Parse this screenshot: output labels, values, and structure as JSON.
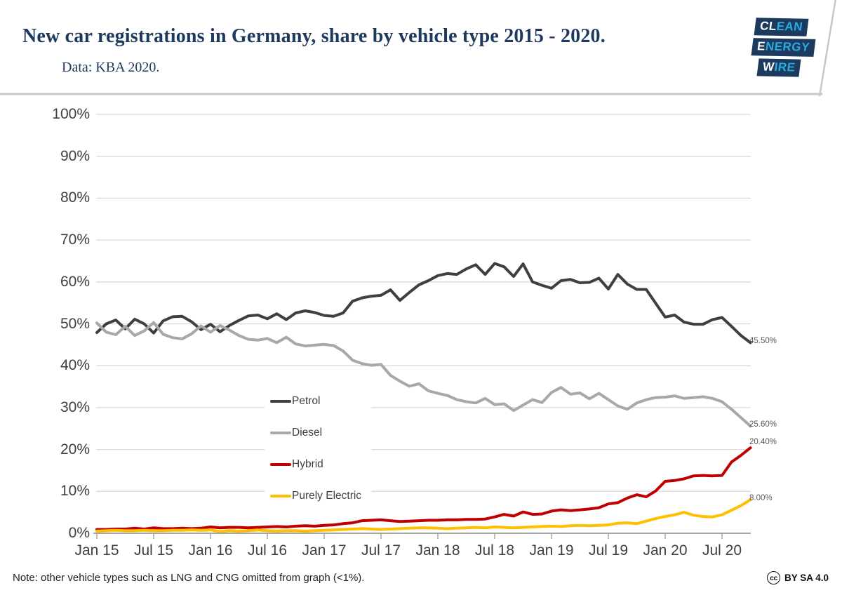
{
  "header": {
    "title": "New car registrations in Germany, share by vehicle type 2015 - 2020.",
    "subtitle": "Data: KBA 2020.",
    "logo_lines": [
      {
        "white": "CL",
        "blue": "EAN"
      },
      {
        "white": "E",
        "blue": "NERGY"
      },
      {
        "white": "W",
        "blue": "IRE"
      }
    ]
  },
  "footer": {
    "note": "Note: other vehicle types such as LNG and CNG omitted from graph (<1%).",
    "license_icon": "cc",
    "license_text": "BY SA 4.0"
  },
  "colors": {
    "title_navy": "#1d3a5e",
    "logo_navy": "#1b3a5e",
    "logo_blue": "#29abe2",
    "gridline": "#d9d9d9",
    "axis": "#a6a6a6",
    "axis_text": "#3f3f3f",
    "header_rule": "#c7c7c7"
  },
  "chart_data": {
    "type": "line",
    "x_unit": "month",
    "x_start": "Jan 2015",
    "x_end": "Oct 2020",
    "x_tick_labels": [
      "Jan 15",
      "Jul 15",
      "Jan 16",
      "Jul 16",
      "Jan 17",
      "Jul 17",
      "Jan 18",
      "Jul 18",
      "Jan 19",
      "Jul 19",
      "Jan 20",
      "Jul 20"
    ],
    "y_tick_labels": [
      "0%",
      "10%",
      "20%",
      "30%",
      "40%",
      "50%",
      "60%",
      "70%",
      "80%",
      "90%",
      "100%"
    ],
    "ylim": [
      0,
      100
    ],
    "grid": "horizontal",
    "legend_position": "inside-lower-left",
    "series": [
      {
        "name": "Petrol",
        "color": "#3f3f3f",
        "end_label": "45.50%",
        "values": [
          47.9,
          50.0,
          50.9,
          48.8,
          51.1,
          50.0,
          47.8,
          50.7,
          51.7,
          51.8,
          50.5,
          48.6,
          49.9,
          48.1,
          49.6,
          50.8,
          51.9,
          52.1,
          51.2,
          52.4,
          51.0,
          52.6,
          53.1,
          52.7,
          52.0,
          51.8,
          52.6,
          55.4,
          56.2,
          56.6,
          56.8,
          58.1,
          55.6,
          57.5,
          59.3,
          60.3,
          61.5,
          62.0,
          61.8,
          63.1,
          64.1,
          61.8,
          64.4,
          63.6,
          61.3,
          64.3,
          60.0,
          59.2,
          58.5,
          60.3,
          60.6,
          59.8,
          59.9,
          60.9,
          58.3,
          61.8,
          59.5,
          58.2,
          58.2,
          54.9,
          51.6,
          52.1,
          50.4,
          49.9,
          49.9,
          51.0,
          51.5,
          49.4,
          47.2,
          45.5
        ]
      },
      {
        "name": "Diesel",
        "color": "#a8a8a8",
        "end_label": "25.60%",
        "values": [
          50.2,
          48.0,
          47.4,
          49.4,
          47.2,
          48.3,
          50.3,
          47.5,
          46.7,
          46.4,
          47.6,
          49.5,
          48.0,
          49.6,
          48.5,
          47.2,
          46.3,
          46.1,
          46.5,
          45.5,
          46.8,
          45.2,
          44.7,
          44.9,
          45.1,
          44.8,
          43.5,
          41.3,
          40.5,
          40.1,
          40.3,
          37.7,
          36.3,
          35.1,
          35.7,
          34.0,
          33.4,
          32.9,
          31.9,
          31.4,
          31.1,
          32.2,
          30.7,
          30.9,
          29.3,
          30.6,
          31.9,
          31.2,
          33.6,
          34.8,
          33.2,
          33.5,
          32.1,
          33.4,
          31.9,
          30.4,
          29.6,
          31.1,
          31.9,
          32.4,
          32.5,
          32.8,
          32.2,
          32.4,
          32.6,
          32.2,
          31.4,
          29.6,
          27.6,
          25.6
        ]
      },
      {
        "name": "Hybrid",
        "color": "#c00000",
        "end_label": "20.40%",
        "values": [
          0.9,
          0.9,
          1.0,
          1.0,
          1.2,
          1.0,
          1.3,
          1.1,
          1.1,
          1.2,
          1.1,
          1.2,
          1.5,
          1.3,
          1.4,
          1.4,
          1.3,
          1.4,
          1.5,
          1.6,
          1.5,
          1.7,
          1.8,
          1.7,
          1.9,
          2.0,
          2.3,
          2.5,
          3.0,
          3.1,
          3.2,
          3.0,
          2.8,
          2.9,
          3.0,
          3.1,
          3.1,
          3.2,
          3.2,
          3.3,
          3.3,
          3.4,
          3.9,
          4.5,
          4.1,
          5.1,
          4.5,
          4.6,
          5.3,
          5.6,
          5.4,
          5.6,
          5.8,
          6.1,
          7.0,
          7.3,
          8.4,
          9.2,
          8.7,
          10.1,
          12.4,
          12.6,
          13.0,
          13.7,
          13.8,
          13.7,
          13.8,
          17.0,
          18.6,
          20.4
        ]
      },
      {
        "name": "Purely Electric",
        "color": "#ffc000",
        "end_label": "8.00%",
        "values": [
          0.5,
          0.6,
          0.7,
          0.6,
          0.6,
          0.7,
          0.6,
          0.6,
          0.7,
          0.7,
          0.8,
          0.7,
          0.8,
          0.4,
          0.6,
          0.5,
          0.6,
          0.8,
          0.6,
          0.5,
          0.6,
          0.6,
          0.5,
          0.6,
          0.7,
          0.8,
          0.9,
          1.0,
          1.1,
          1.0,
          0.9,
          1.0,
          1.1,
          1.2,
          1.3,
          1.3,
          1.2,
          1.1,
          1.2,
          1.3,
          1.4,
          1.3,
          1.5,
          1.4,
          1.3,
          1.4,
          1.5,
          1.6,
          1.7,
          1.6,
          1.8,
          1.9,
          1.8,
          1.9,
          2.0,
          2.4,
          2.5,
          2.3,
          2.9,
          3.5,
          4.0,
          4.4,
          5.0,
          4.3,
          4.0,
          3.9,
          4.4,
          5.5,
          6.6,
          8.0
        ]
      }
    ]
  }
}
